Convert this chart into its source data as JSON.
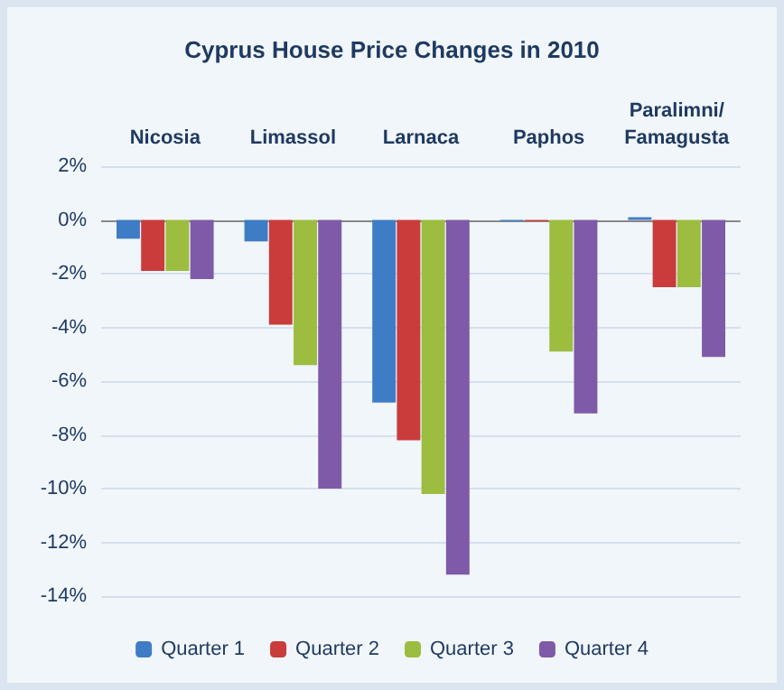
{
  "chart_data": {
    "type": "bar",
    "title": "Cyprus House Price Changes in 2010",
    "categories": [
      "Nicosia",
      "Limassol",
      "Larnaca",
      "Paphos",
      "Paralimni/\nFamagusta"
    ],
    "series": [
      {
        "name": "Quarter 1",
        "color": "#3f7cc6",
        "values": [
          -0.7,
          -0.8,
          -6.8,
          -0.05,
          0.1
        ]
      },
      {
        "name": "Quarter 2",
        "color": "#c93c3b",
        "values": [
          -1.9,
          -3.9,
          -8.2,
          -0.05,
          -2.5
        ]
      },
      {
        "name": "Quarter 3",
        "color": "#9cbd3f",
        "values": [
          -1.9,
          -5.4,
          -10.2,
          -4.9,
          -2.5
        ]
      },
      {
        "name": "Quarter 4",
        "color": "#7f5aa8",
        "values": [
          -2.2,
          -10.0,
          -13.2,
          -7.2,
          -5.1
        ]
      }
    ],
    "ylim": [
      -14,
      2
    ],
    "yticks": [
      {
        "value": -14,
        "label": "-14%"
      },
      {
        "value": -12,
        "label": "-12%"
      },
      {
        "value": -10,
        "label": "-10%"
      },
      {
        "value": -8,
        "label": "-8%"
      },
      {
        "value": -6,
        "label": "-6%"
      },
      {
        "value": -4,
        "label": "-4%"
      },
      {
        "value": -2,
        "label": "-2%"
      },
      {
        "value": 0,
        "label": "0%"
      },
      {
        "value": 2,
        "label": "2%"
      }
    ],
    "grid": "y",
    "legend": "bottom"
  }
}
